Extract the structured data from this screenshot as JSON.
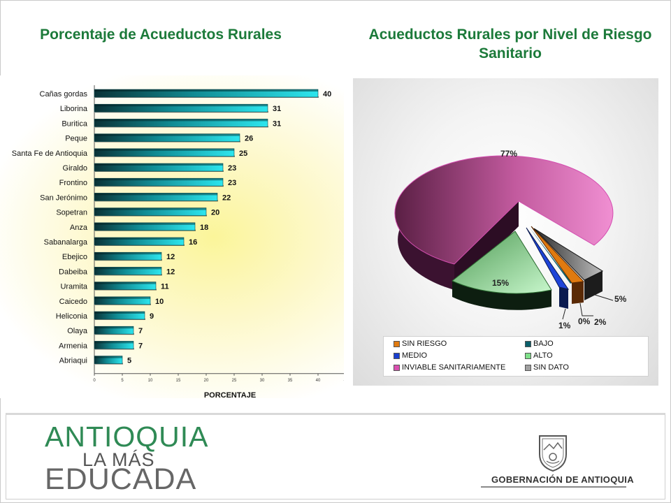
{
  "left_title": "Porcentaje de Acueductos Rurales",
  "right_title": "Acueductos Rurales por Nivel de Riesgo Sanitario",
  "chart_data": [
    {
      "type": "bar",
      "orientation": "horizontal",
      "categories": [
        "Cañas gordas",
        "Liborina",
        "Buritica",
        "Peque",
        "Santa Fe de Antioquia",
        "Giraldo",
        "Frontino",
        "San Jerónimo",
        "Sopetran",
        "Anza",
        "Sabanalarga",
        "Ebejico",
        "Dabeiba",
        "Uramita",
        "Caicedo",
        "Heliconia",
        "Olaya",
        "Armenia",
        "Abriaqui"
      ],
      "values": [
        40,
        31,
        31,
        26,
        25,
        23,
        23,
        22,
        20,
        18,
        16,
        12,
        12,
        11,
        10,
        9,
        7,
        7,
        5
      ],
      "xlabel": "PORCENTAJE",
      "xlim": [
        0,
        45
      ],
      "xticks": [
        0,
        5,
        10,
        15,
        20,
        25,
        30,
        35,
        40,
        45
      ],
      "bar_color": "#1fc8d0"
    },
    {
      "type": "pie",
      "style": "3d-exploded",
      "slices": [
        {
          "label": "SIN RIESGO",
          "value": 2,
          "display": "2%",
          "color": "#e07a10"
        },
        {
          "label": "BAJO",
          "value": 0,
          "display": "0%",
          "color": "#0b5f6a"
        },
        {
          "label": "MEDIO",
          "value": 1,
          "display": "1%",
          "color": "#1a3fd0"
        },
        {
          "label": "ALTO",
          "value": 15,
          "display": "15%",
          "color": "#a8f0b0"
        },
        {
          "label": "INVIABLE SANITARIAMENTE",
          "value": 77,
          "display": "77%",
          "color": "#e784c8"
        },
        {
          "label": "SIN DATO",
          "value": 5,
          "display": "5%",
          "color": "#9a9a9a"
        }
      ],
      "legend": [
        {
          "label": "SIN RIESGO",
          "color": "#e07a10"
        },
        {
          "label": "BAJO",
          "color": "#0b5f6a"
        },
        {
          "label": "MEDIO",
          "color": "#1a3fd0"
        },
        {
          "label": "ALTO",
          "color": "#7fe08a"
        },
        {
          "label": "INVIABLE SANITARIAMENTE",
          "color": "#d94fb0"
        },
        {
          "label": "SIN DATO",
          "color": "#a0a0a0"
        }
      ]
    }
  ],
  "logo": {
    "line1": "ANTIOQUIA",
    "line2": "LA MÁS",
    "line3": "EDUCADA"
  },
  "government": "GOBERNACIÓN DE ANTIOQUIA"
}
